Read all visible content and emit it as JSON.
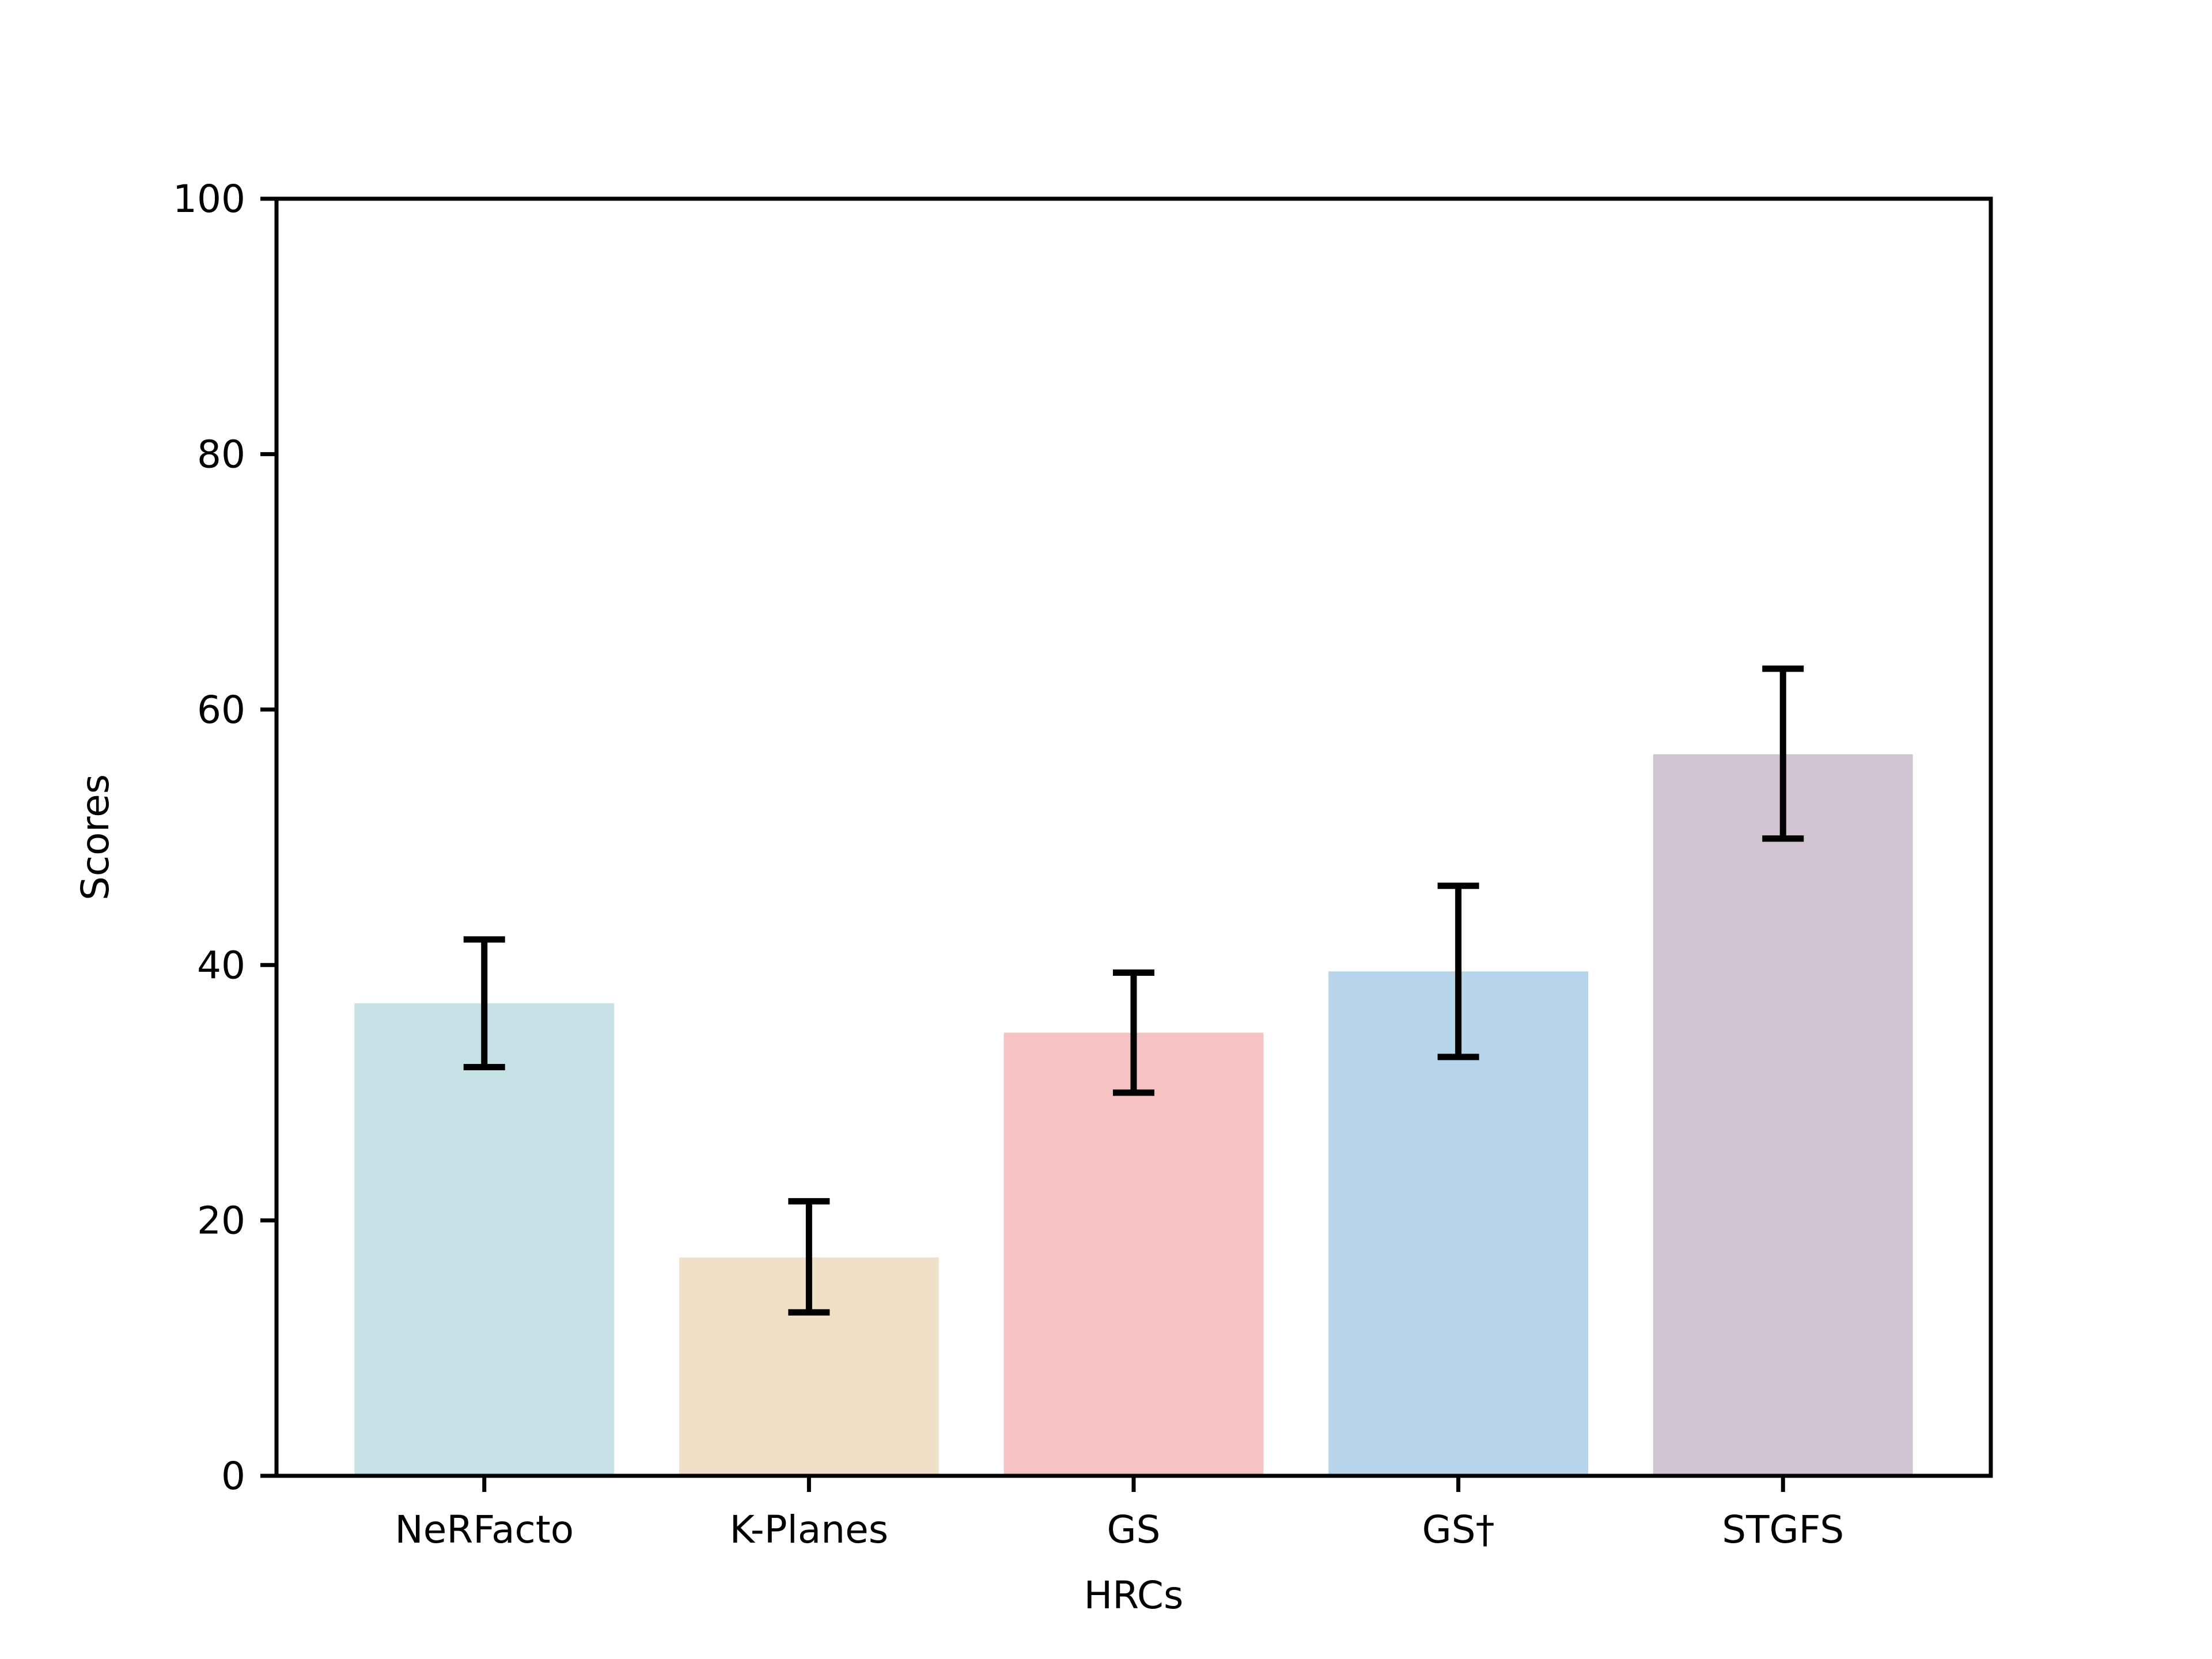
{
  "chart_data": {
    "type": "bar",
    "title": "",
    "xlabel": "HRCs",
    "ylabel": "Scores",
    "categories": [
      "NeRFacto",
      "K-Planes",
      "GS",
      "GS†",
      "STGFS"
    ],
    "values": [
      37.0,
      17.1,
      34.7,
      39.5,
      56.5
    ],
    "error_plus": [
      5.0,
      4.4,
      4.7,
      6.7,
      6.7
    ],
    "error_minus": [
      5.0,
      4.3,
      4.7,
      6.7,
      6.6
    ],
    "bar_colors": [
      "#c6e2e7",
      "#f0e0c8",
      "#f4c3c2",
      "#b7d5ea",
      "#d2c3d3"
    ],
    "error_color": "#000000",
    "axis_color": "#000000",
    "background_color": "#ffffff",
    "ylim": [
      0,
      100
    ],
    "yticks": [
      0,
      20,
      40,
      60,
      80,
      100
    ],
    "ytick_labels": [
      "0",
      "20",
      "40",
      "60",
      "80",
      "100"
    ],
    "bar_width_fraction": 0.8,
    "grid": false,
    "legend": null
  }
}
